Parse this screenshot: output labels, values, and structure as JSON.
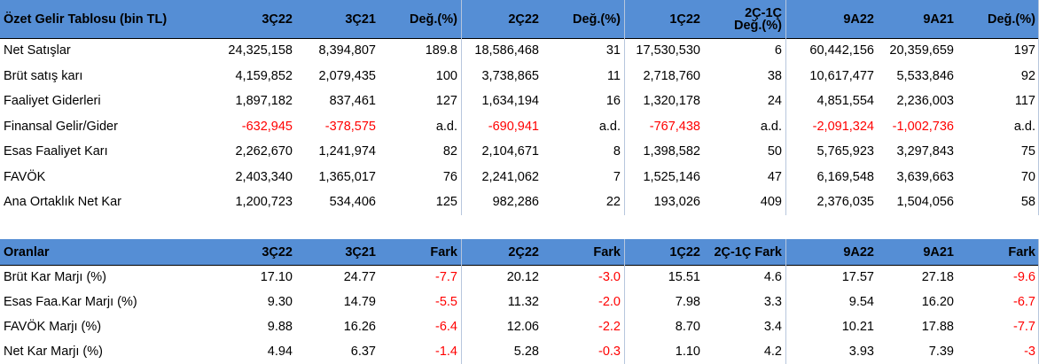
{
  "table1": {
    "headers": [
      "Özet Gelir Tablosu (bin TL)",
      "3Ç22",
      "3Ç21",
      "Değ.(%)",
      "2Ç22",
      "Değ.(%)",
      "1Ç22",
      "2Ç-1Ç Değ.(%)",
      "9A22",
      "9A21",
      "Değ.(%)"
    ],
    "header_two_line": [
      "2Ç-1Ç",
      "Değ.(%)"
    ],
    "rows": [
      {
        "label": "Net Satışlar",
        "cells": [
          "24,325,158",
          "8,394,807",
          "189.8",
          "18,586,468",
          "31",
          "17,530,530",
          "6",
          "60,442,156",
          "20,359,659",
          "197"
        ],
        "neg": []
      },
      {
        "label": "Brüt satış karı",
        "cells": [
          "4,159,852",
          "2,079,435",
          "100",
          "3,738,865",
          "11",
          "2,718,760",
          "38",
          "10,617,477",
          "5,533,846",
          "92"
        ],
        "neg": []
      },
      {
        "label": "Faaliyet Giderleri",
        "cells": [
          "1,897,182",
          "837,461",
          "127",
          "1,634,194",
          "16",
          "1,320,178",
          "24",
          "4,851,554",
          "2,236,003",
          "117"
        ],
        "neg": []
      },
      {
        "label": "Finansal Gelir/Gider",
        "cells": [
          "-632,945",
          "-378,575",
          "a.d.",
          "-690,941",
          "a.d.",
          "-767,438",
          "a.d.",
          "-2,091,324",
          "-1,002,736",
          "a.d."
        ],
        "neg": [
          0,
          1,
          3,
          5,
          7,
          8
        ]
      },
      {
        "label": "Esas Faaliyet Karı",
        "cells": [
          "2,262,670",
          "1,241,974",
          "82",
          "2,104,671",
          "8",
          "1,398,582",
          "50",
          "5,765,923",
          "3,297,843",
          "75"
        ],
        "neg": []
      },
      {
        "label": "FAVÖK",
        "cells": [
          "2,403,340",
          "1,365,017",
          "76",
          "2,241,062",
          "7",
          "1,525,146",
          "47",
          "6,169,548",
          "3,639,663",
          "70"
        ],
        "neg": []
      },
      {
        "label": "Ana Ortaklık Net Kar",
        "cells": [
          "1,200,723",
          "534,406",
          "125",
          "982,286",
          "22",
          "193,026",
          "409",
          "2,376,035",
          "1,504,056",
          "58"
        ],
        "neg": []
      }
    ]
  },
  "table2": {
    "headers": [
      "Oranlar",
      "3Ç22",
      "3Ç21",
      "Fark",
      "2Ç22",
      "Fark",
      "1Ç22",
      "2Ç-1Ç Fark",
      "9A22",
      "9A21",
      "Fark"
    ],
    "rows": [
      {
        "label": "Brüt Kar Marjı (%)",
        "cells": [
          "17.10",
          "24.77",
          "-7.7",
          "20.12",
          "-3.0",
          "15.51",
          "4.6",
          "17.57",
          "27.18",
          "-9.6"
        ],
        "neg": [
          2,
          4,
          9
        ]
      },
      {
        "label": "Esas Faa.Kar Marjı (%)",
        "cells": [
          "9.30",
          "14.79",
          "-5.5",
          "11.32",
          "-2.0",
          "7.98",
          "3.3",
          "9.54",
          "16.20",
          "-6.7"
        ],
        "neg": [
          2,
          4,
          9
        ]
      },
      {
        "label": "FAVÖK Marjı (%)",
        "cells": [
          "9.88",
          "16.26",
          "-6.4",
          "12.06",
          "-2.2",
          "8.70",
          "3.4",
          "10.21",
          "17.88",
          "-7.7"
        ],
        "neg": [
          2,
          4,
          9
        ]
      },
      {
        "label": "Net Kar Marjı (%)",
        "cells": [
          "4.94",
          "6.37",
          "-1.4",
          "5.28",
          "-0.3",
          "1.10",
          "4.2",
          "3.93",
          "7.39",
          "-3"
        ],
        "neg": [
          2,
          4,
          9
        ]
      }
    ]
  },
  "colors": {
    "header_bg": "#558ed5",
    "negative": "#ff0000"
  }
}
